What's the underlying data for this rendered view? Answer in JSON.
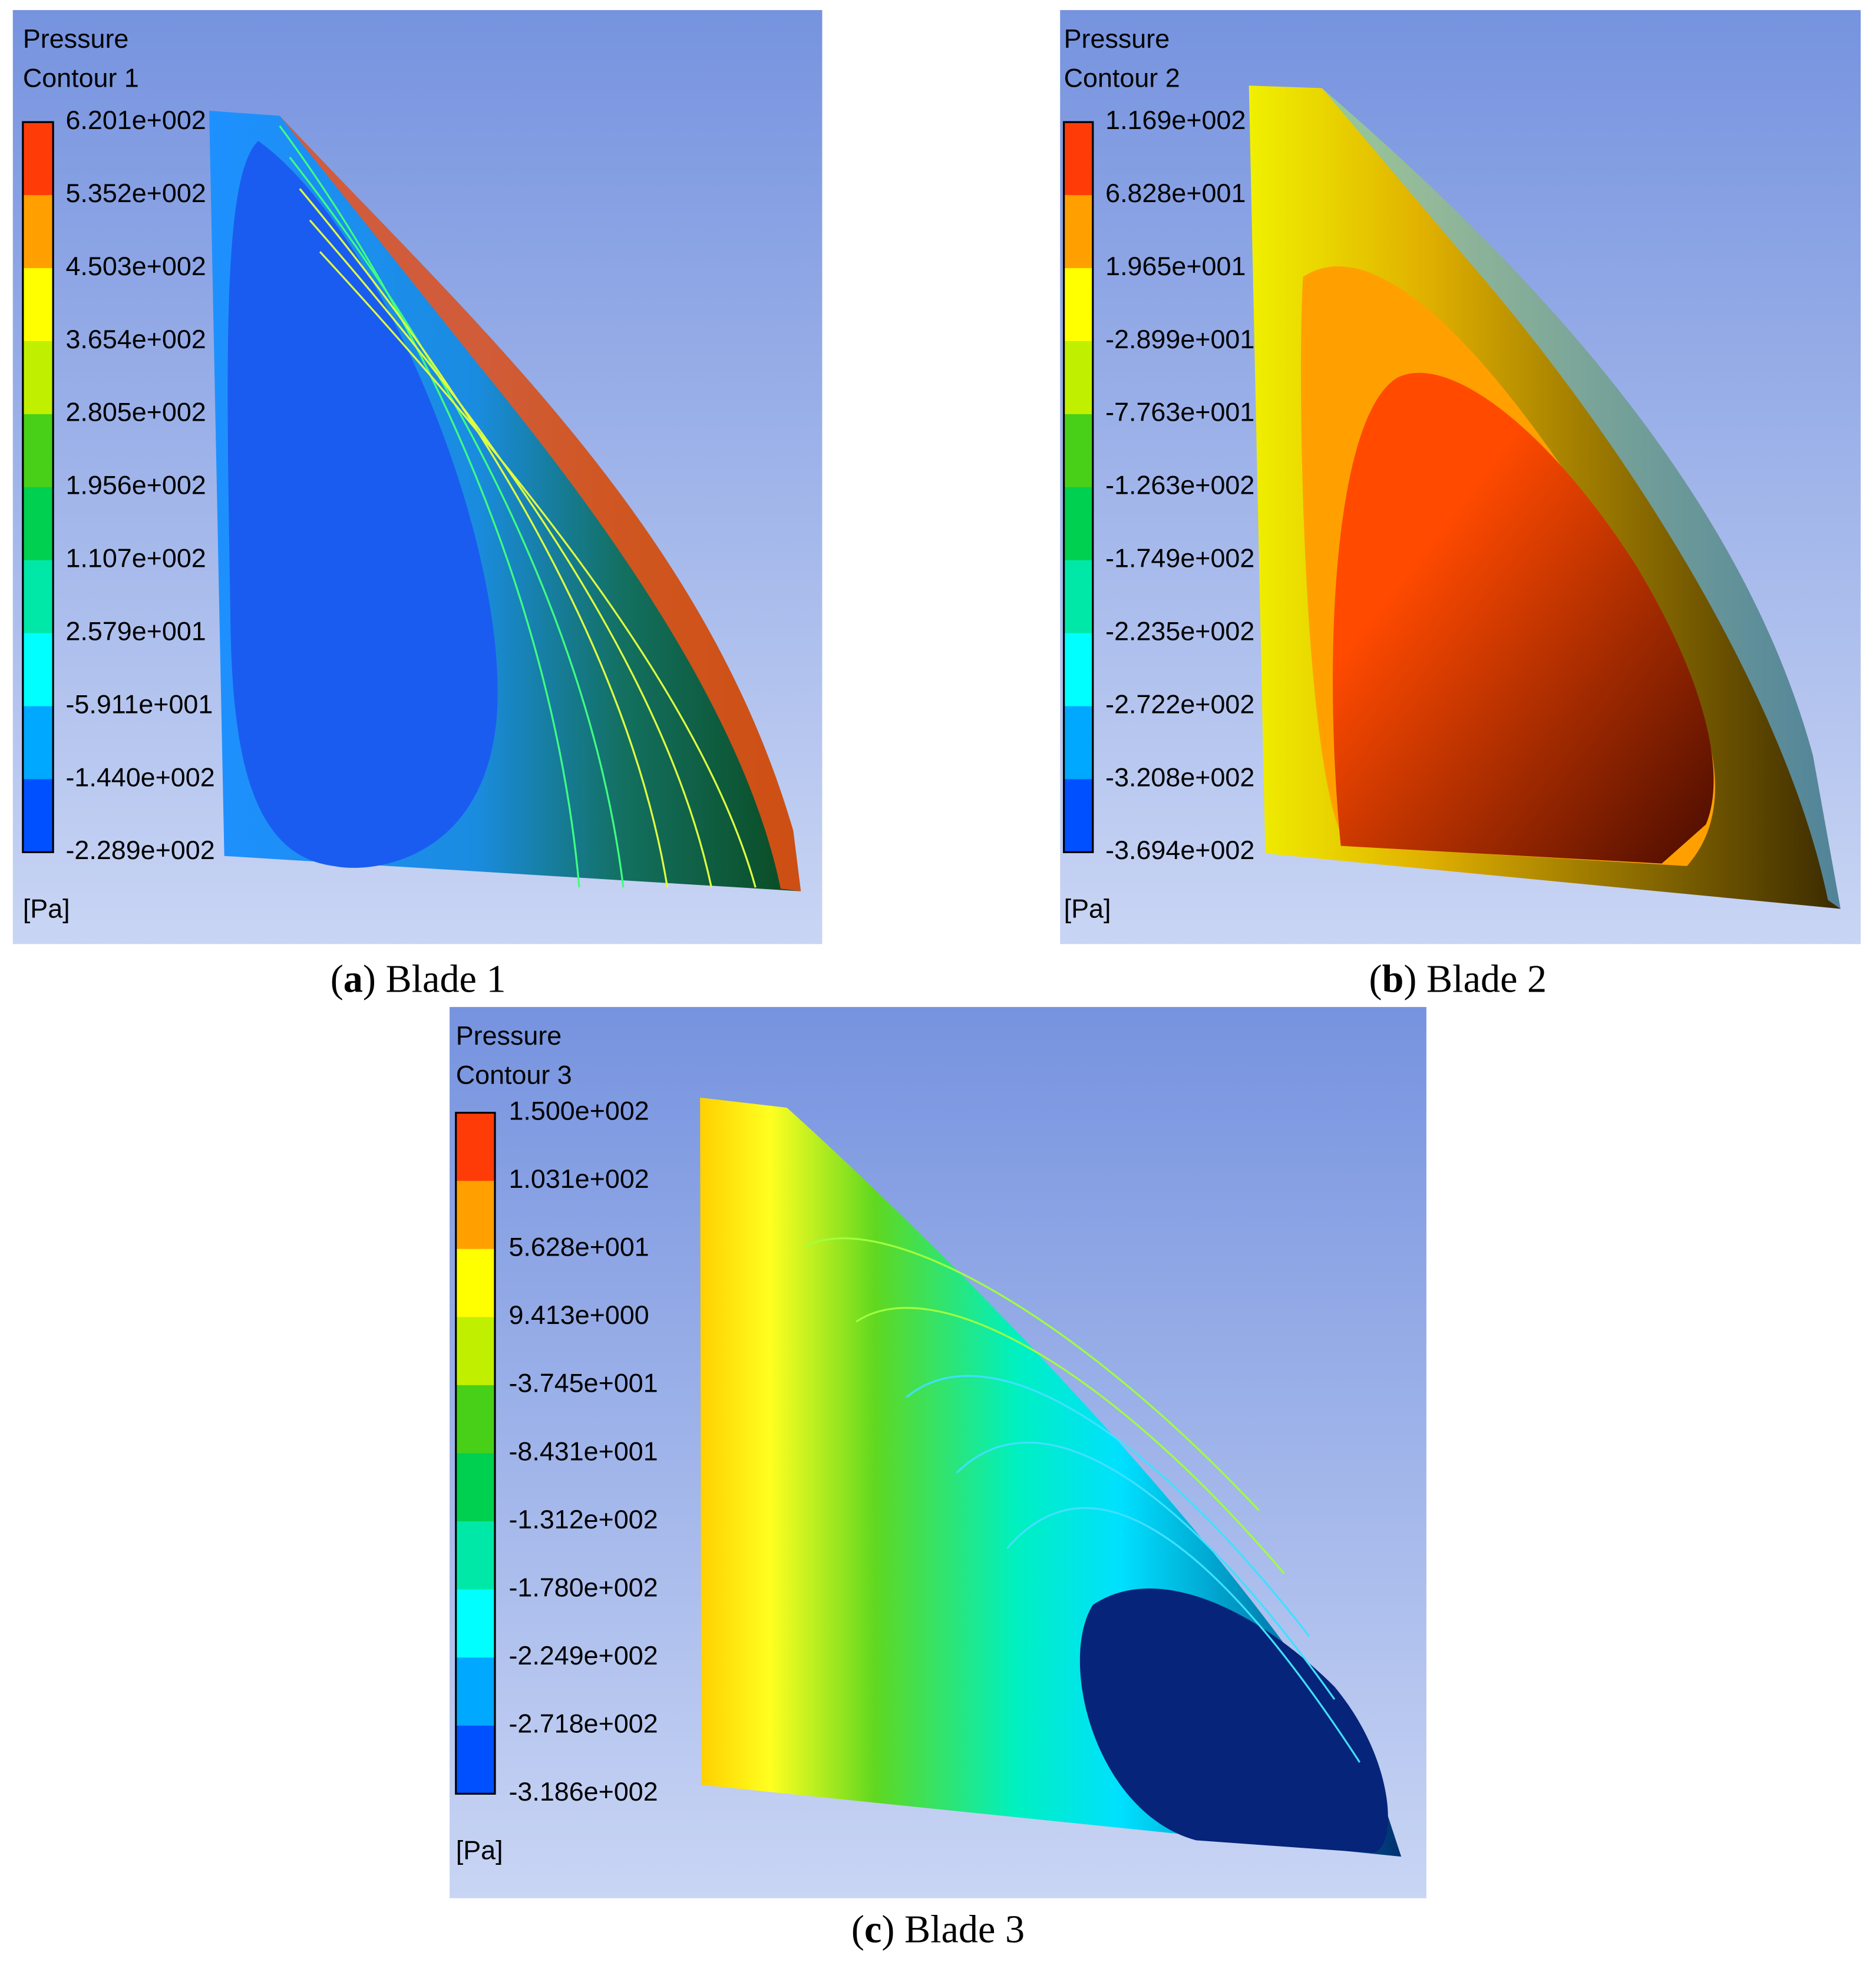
{
  "panels": [
    {
      "title": "Pressure",
      "subtitle": "Contour 1",
      "levels": [
        "6.201e+002",
        "5.352e+002",
        "4.503e+002",
        "3.654e+002",
        "2.805e+002",
        "1.956e+002",
        "1.107e+002",
        "2.579e+001",
        "-5.911e+001",
        "-1.440e+002",
        "-2.289e+002"
      ],
      "unit": "[Pa]",
      "caption": [
        "(",
        "a",
        ") Blade 1"
      ]
    },
    {
      "title": "Pressure",
      "subtitle": "Contour 2",
      "levels": [
        "1.169e+002",
        "6.828e+001",
        "1.965e+001",
        "-2.899e+001",
        "-7.763e+001",
        "-1.263e+002",
        "-1.749e+002",
        "-2.235e+002",
        "-2.722e+002",
        "-3.208e+002",
        "-3.694e+002"
      ],
      "unit": "[Pa]",
      "caption": [
        "(",
        "b",
        ") Blade 2"
      ]
    },
    {
      "title": "Pressure",
      "subtitle": "Contour 3",
      "levels": [
        "1.500e+002",
        "1.031e+002",
        "5.628e+001",
        "9.413e+000",
        "-3.745e+001",
        "-8.431e+001",
        "-1.312e+002",
        "-1.780e+002",
        "-2.249e+002",
        "-2.718e+002",
        "-3.186e+002"
      ],
      "unit": "[Pa]",
      "caption": [
        "(",
        "c",
        ") Blade 3"
      ]
    }
  ]
}
